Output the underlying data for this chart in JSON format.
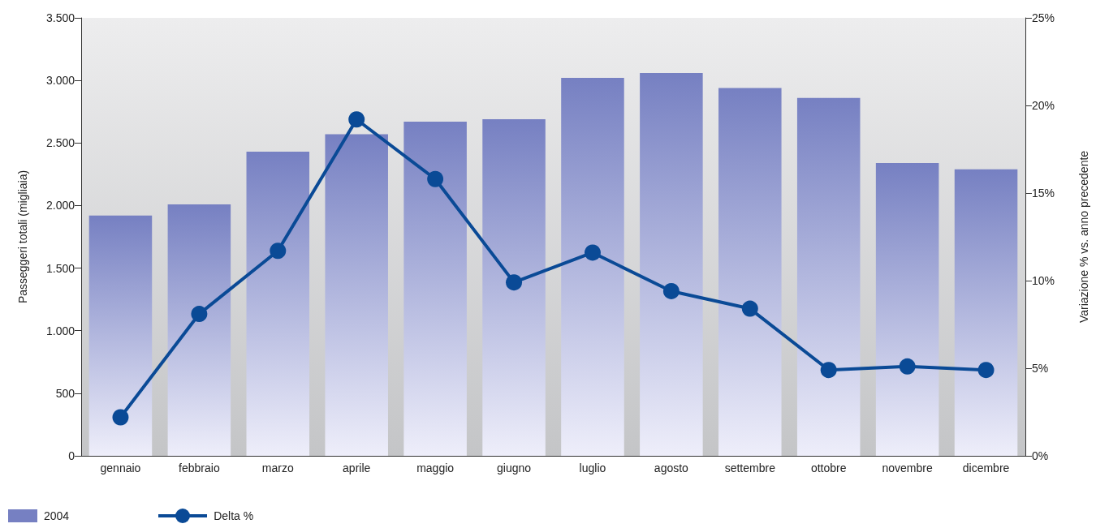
{
  "chart_data": {
    "type": "bar",
    "ylabel": "Passeggeri totali (migliaia)",
    "y2label": "Variazione % vs. anno precedente",
    "categories": [
      "gennaio",
      "febbraio",
      "marzo",
      "aprile",
      "maggio",
      "giugno",
      "luglio",
      "agosto",
      "settembre",
      "ottobre",
      "novembre",
      "dicembre"
    ],
    "series": [
      {
        "name": "2004",
        "color": "#7680c2",
        "values": [
          1920,
          2010,
          2430,
          2570,
          2670,
          2690,
          3020,
          3060,
          2940,
          2860,
          2340,
          2290
        ]
      },
      {
        "name": "Delta %",
        "type": "line",
        "axis": "y2",
        "color": "#0a4a96",
        "marker": "circle",
        "values": [
          2.2,
          8.1,
          11.7,
          19.2,
          15.8,
          9.9,
          11.6,
          9.4,
          8.4,
          4.9,
          5.1,
          4.9
        ]
      }
    ],
    "ylim": [
      0,
      3500
    ],
    "yticks": [
      0,
      500,
      {
        "value": 1000,
        "label": "1.000"
      },
      {
        "value": 1500,
        "label": "1.500"
      },
      {
        "value": 2000,
        "label": "2.000"
      },
      {
        "value": 2500,
        "label": "2.500"
      },
      {
        "value": 3000,
        "label": "3.000"
      },
      {
        "value": 3500,
        "label": "3.500"
      }
    ],
    "y2lim": [
      0,
      25
    ],
    "y2ticks": [
      {
        "value": 0,
        "label": "0%"
      },
      {
        "value": 5,
        "label": "5%"
      },
      {
        "value": 10,
        "label": "10%"
      },
      {
        "value": 15,
        "label": "15%"
      },
      {
        "value": 20,
        "label": "20%"
      },
      {
        "value": 25,
        "label": "25%"
      }
    ],
    "grid": false,
    "legend": "bottom left"
  }
}
